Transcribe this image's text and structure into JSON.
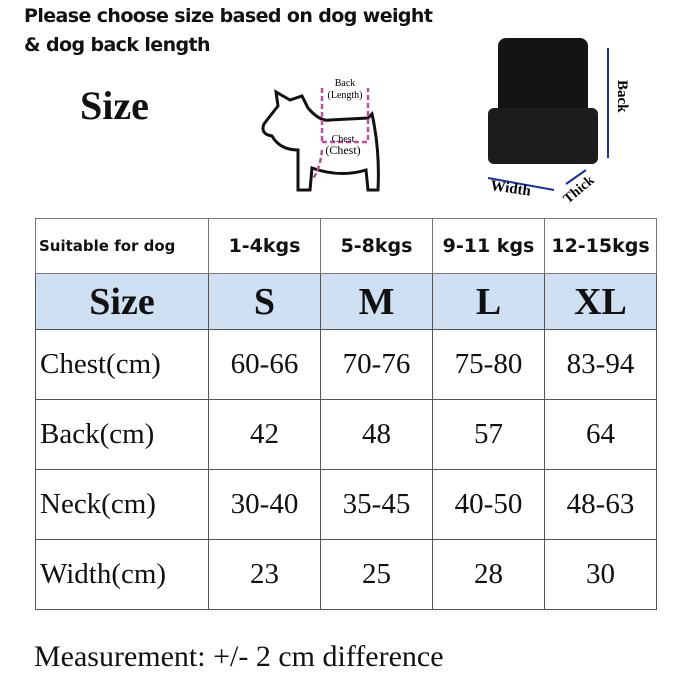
{
  "title": {
    "line1": "Please choose size based on dog weight",
    "line2": "& dog back length"
  },
  "size_heading": "Size",
  "dog_diagram": {
    "back_label": "Back",
    "back_sub": "(Length)",
    "chest_label": "Chest",
    "chest_sub": "(Chest)",
    "accent": "#c04d9a"
  },
  "bag_diagram": {
    "back": "Back",
    "width": "Width",
    "thick": "Thick",
    "arrow_color": "#1a2fa0"
  },
  "table": {
    "weight_row": [
      "Suitable for dog",
      "1-4kgs",
      "5-8kgs",
      "9-11 kgs",
      "12-15kgs"
    ],
    "header": [
      "Size",
      "S",
      "M",
      "L",
      "XL"
    ],
    "rows": [
      [
        "Chest(cm)",
        "60-66",
        "70-76",
        "75-80",
        "83-94"
      ],
      [
        "Back(cm)",
        "42",
        "48",
        "57",
        "64"
      ],
      [
        "Neck(cm)",
        "30-40",
        "35-45",
        "40-50",
        "48-63"
      ],
      [
        "Width(cm)",
        "23",
        "25",
        "28",
        "30"
      ]
    ],
    "header_bg": "#cfe0f3"
  },
  "footer": "Measurement:  +/- 2 cm difference"
}
